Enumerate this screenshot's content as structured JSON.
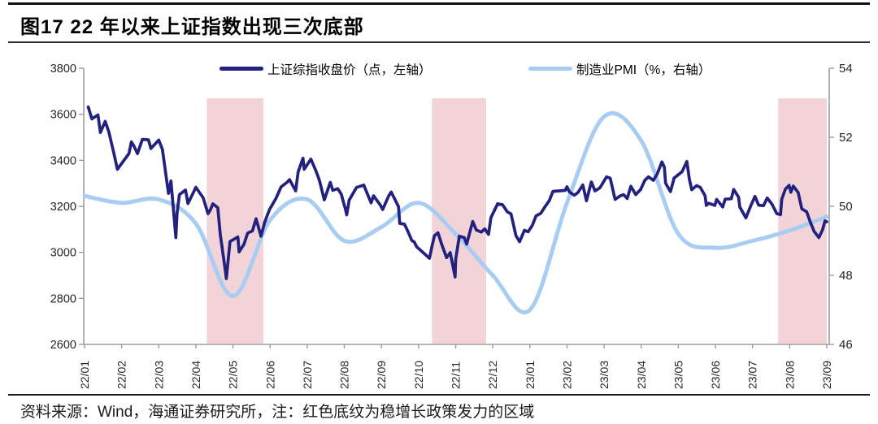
{
  "figure": {
    "title": "图17 22 年以来上证指数出现三次底部",
    "source_note": "资料来源：Wind，海通证券研究所，注：红色底纹为稳增长政策发力的区域"
  },
  "chart_data": {
    "type": "line",
    "title": "图17 22 年以来上证指数出现三次底部",
    "legend": [
      {
        "label": "上证综指收盘价（点，左轴）",
        "color": "#22217F"
      },
      {
        "label": "制造业PMI（%，右轴）",
        "color": "#A8CDF2"
      }
    ],
    "x_axis": {
      "tick_labels": [
        "22/01",
        "22/02",
        "22/03",
        "22/04",
        "22/05",
        "22/06",
        "22/07",
        "22/08",
        "22/09",
        "22/10",
        "22/11",
        "22/12",
        "23/01",
        "23/02",
        "23/03",
        "23/04",
        "23/05",
        "23/06",
        "23/07",
        "23/08",
        "23/09"
      ]
    },
    "left_y_axis": {
      "name": "上证综指收盘价（点）",
      "range": [
        2600,
        3800
      ],
      "ticks": [
        3800,
        3600,
        3400,
        3200,
        3000,
        2800,
        2600
      ]
    },
    "right_y_axis": {
      "name": "制造业PMI（%）",
      "range": [
        46,
        54
      ],
      "ticks": [
        54,
        52,
        50,
        48,
        46
      ]
    },
    "highlight_bands": {
      "meaning": "红色底纹为稳增长政策发力的区域",
      "color": "#F2D4D8",
      "ranges": [
        {
          "from": "2022-04-10",
          "to": "2022-05-26"
        },
        {
          "from": "2022-10-12",
          "to": "2022-11-26"
        },
        {
          "from": "2023-07-22",
          "to": "2023-09-01"
        }
      ]
    },
    "series": [
      {
        "name": "上证综指收盘价",
        "axis": "left",
        "unit": "点",
        "color": "#22217F",
        "points": [
          [
            "2022-01-04",
            3632
          ],
          [
            "2022-01-07",
            3580
          ],
          [
            "2022-01-12",
            3597
          ],
          [
            "2022-01-14",
            3521
          ],
          [
            "2022-01-18",
            3569
          ],
          [
            "2022-01-21",
            3523
          ],
          [
            "2022-01-25",
            3433
          ],
          [
            "2022-01-28",
            3361
          ],
          [
            "2022-02-07",
            3429
          ],
          [
            "2022-02-09",
            3480
          ],
          [
            "2022-02-11",
            3463
          ],
          [
            "2022-02-14",
            3429
          ],
          [
            "2022-02-18",
            3491
          ],
          [
            "2022-02-23",
            3489
          ],
          [
            "2022-02-25",
            3451
          ],
          [
            "2022-03-01",
            3488
          ],
          [
            "2022-03-04",
            3447
          ],
          [
            "2022-03-08",
            3293
          ],
          [
            "2022-03-09",
            3256
          ],
          [
            "2022-03-11",
            3310
          ],
          [
            "2022-03-15",
            3064
          ],
          [
            "2022-03-16",
            3171
          ],
          [
            "2022-03-18",
            3251
          ],
          [
            "2022-03-23",
            3271
          ],
          [
            "2022-03-25",
            3212
          ],
          [
            "2022-03-30",
            3266
          ],
          [
            "2022-04-01",
            3283
          ],
          [
            "2022-04-07",
            3237
          ],
          [
            "2022-04-11",
            3168
          ],
          [
            "2022-04-13",
            3186
          ],
          [
            "2022-04-15",
            3211
          ],
          [
            "2022-04-19",
            3194
          ],
          [
            "2022-04-21",
            3079
          ],
          [
            "2022-04-25",
            2928
          ],
          [
            "2022-04-26",
            2886
          ],
          [
            "2022-04-29",
            3047
          ],
          [
            "2022-05-05",
            3067
          ],
          [
            "2022-05-06",
            3002
          ],
          [
            "2022-05-10",
            3035
          ],
          [
            "2022-05-13",
            3084
          ],
          [
            "2022-05-17",
            3093
          ],
          [
            "2022-05-20",
            3146
          ],
          [
            "2022-05-24",
            3070
          ],
          [
            "2022-05-27",
            3130
          ],
          [
            "2022-05-31",
            3186
          ],
          [
            "2022-06-06",
            3236
          ],
          [
            "2022-06-10",
            3284
          ],
          [
            "2022-06-15",
            3305
          ],
          [
            "2022-06-17",
            3316
          ],
          [
            "2022-06-22",
            3267
          ],
          [
            "2022-06-24",
            3349
          ],
          [
            "2022-06-28",
            3409
          ],
          [
            "2022-06-29",
            3361
          ],
          [
            "2022-07-04",
            3405
          ],
          [
            "2022-07-08",
            3356
          ],
          [
            "2022-07-11",
            3313
          ],
          [
            "2022-07-15",
            3228
          ],
          [
            "2022-07-20",
            3304
          ],
          [
            "2022-07-22",
            3269
          ],
          [
            "2022-07-26",
            3277
          ],
          [
            "2022-07-29",
            3253
          ],
          [
            "2022-08-02",
            3186
          ],
          [
            "2022-08-03",
            3163
          ],
          [
            "2022-08-05",
            3227
          ],
          [
            "2022-08-11",
            3282
          ],
          [
            "2022-08-17",
            3292
          ],
          [
            "2022-08-23",
            3215
          ],
          [
            "2022-08-25",
            3246
          ],
          [
            "2022-08-31",
            3202
          ],
          [
            "2022-09-02",
            3186
          ],
          [
            "2022-09-07",
            3246
          ],
          [
            "2022-09-09",
            3262
          ],
          [
            "2022-09-15",
            3199
          ],
          [
            "2022-09-16",
            3126
          ],
          [
            "2022-09-20",
            3122
          ],
          [
            "2022-09-23",
            3088
          ],
          [
            "2022-09-26",
            3051
          ],
          [
            "2022-09-28",
            3045
          ],
          [
            "2022-09-30",
            3024
          ],
          [
            "2022-10-10",
            2974
          ],
          [
            "2022-10-12",
            3025
          ],
          [
            "2022-10-14",
            3072
          ],
          [
            "2022-10-17",
            3085
          ],
          [
            "2022-10-20",
            3035
          ],
          [
            "2022-10-24",
            2977
          ],
          [
            "2022-10-27",
            2999
          ],
          [
            "2022-10-31",
            2893
          ],
          [
            "2022-11-01",
            2969
          ],
          [
            "2022-11-04",
            3070
          ],
          [
            "2022-11-08",
            3064
          ],
          [
            "2022-11-10",
            3036
          ],
          [
            "2022-11-15",
            3134
          ],
          [
            "2022-11-18",
            3097
          ],
          [
            "2022-11-22",
            3088
          ],
          [
            "2022-11-25",
            3102
          ],
          [
            "2022-11-28",
            3078
          ],
          [
            "2022-11-30",
            3151
          ],
          [
            "2022-12-05",
            3211
          ],
          [
            "2022-12-09",
            3207
          ],
          [
            "2022-12-13",
            3176
          ],
          [
            "2022-12-16",
            3167
          ],
          [
            "2022-12-20",
            3073
          ],
          [
            "2022-12-23",
            3046
          ],
          [
            "2022-12-27",
            3096
          ],
          [
            "2022-12-30",
            3089
          ],
          [
            "2023-01-03",
            3117
          ],
          [
            "2023-01-06",
            3158
          ],
          [
            "2023-01-10",
            3170
          ],
          [
            "2023-01-13",
            3195
          ],
          [
            "2023-01-17",
            3225
          ],
          [
            "2023-01-20",
            3265
          ],
          [
            "2023-01-30",
            3269
          ],
          [
            "2023-02-01",
            3285
          ],
          [
            "2023-02-03",
            3263
          ],
          [
            "2023-02-07",
            3248
          ],
          [
            "2023-02-10",
            3260
          ],
          [
            "2023-02-14",
            3293
          ],
          [
            "2023-02-17",
            3224
          ],
          [
            "2023-02-21",
            3306
          ],
          [
            "2023-02-24",
            3267
          ],
          [
            "2023-02-28",
            3280
          ],
          [
            "2023-03-03",
            3328
          ],
          [
            "2023-03-06",
            3322
          ],
          [
            "2023-03-10",
            3230
          ],
          [
            "2023-03-14",
            3245
          ],
          [
            "2023-03-17",
            3251
          ],
          [
            "2023-03-20",
            3234
          ],
          [
            "2023-03-23",
            3287
          ],
          [
            "2023-03-27",
            3251
          ],
          [
            "2023-03-31",
            3273
          ],
          [
            "2023-04-04",
            3313
          ],
          [
            "2023-04-07",
            3328
          ],
          [
            "2023-04-11",
            3313
          ],
          [
            "2023-04-14",
            3339
          ],
          [
            "2023-04-18",
            3393
          ],
          [
            "2023-04-20",
            3370
          ],
          [
            "2023-04-21",
            3301
          ],
          [
            "2023-04-25",
            3264
          ],
          [
            "2023-04-28",
            3323
          ],
          [
            "2023-05-04",
            3350
          ],
          [
            "2023-05-08",
            3395
          ],
          [
            "2023-05-10",
            3319
          ],
          [
            "2023-05-12",
            3272
          ],
          [
            "2023-05-16",
            3290
          ],
          [
            "2023-05-19",
            3283
          ],
          [
            "2023-05-23",
            3246
          ],
          [
            "2023-05-24",
            3204
          ],
          [
            "2023-05-26",
            3213
          ],
          [
            "2023-05-31",
            3204
          ],
          [
            "2023-06-02",
            3230
          ],
          [
            "2023-06-07",
            3197
          ],
          [
            "2023-06-09",
            3231
          ],
          [
            "2023-06-14",
            3233
          ],
          [
            "2023-06-16",
            3273
          ],
          [
            "2023-06-20",
            3240
          ],
          [
            "2023-06-21",
            3197
          ],
          [
            "2023-06-26",
            3150
          ],
          [
            "2023-06-30",
            3202
          ],
          [
            "2023-07-03",
            3243
          ],
          [
            "2023-07-06",
            3205
          ],
          [
            "2023-07-10",
            3203
          ],
          [
            "2023-07-13",
            3236
          ],
          [
            "2023-07-17",
            3209
          ],
          [
            "2023-07-21",
            3168
          ],
          [
            "2023-07-24",
            3164
          ],
          [
            "2023-07-25",
            3231
          ],
          [
            "2023-07-28",
            3275
          ],
          [
            "2023-07-31",
            3291
          ],
          [
            "2023-08-02",
            3261
          ],
          [
            "2023-08-04",
            3288
          ],
          [
            "2023-08-08",
            3260
          ],
          [
            "2023-08-11",
            3189
          ],
          [
            "2023-08-15",
            3176
          ],
          [
            "2023-08-18",
            3131
          ],
          [
            "2023-08-21",
            3092
          ],
          [
            "2023-08-23",
            3078
          ],
          [
            "2023-08-25",
            3064
          ],
          [
            "2023-08-28",
            3098
          ],
          [
            "2023-08-30",
            3137
          ],
          [
            "2023-09-01",
            3133
          ]
        ]
      },
      {
        "name": "制造业PMI",
        "axis": "right",
        "unit": "%",
        "color": "#A8CDF2",
        "plotted_at": "month_end",
        "points": [
          [
            "2021-12",
            50.3
          ],
          [
            "2022-01",
            50.1
          ],
          [
            "2022-02",
            50.2
          ],
          [
            "2022-03",
            49.5
          ],
          [
            "2022-04",
            47.4
          ],
          [
            "2022-05",
            49.6
          ],
          [
            "2022-06",
            50.2
          ],
          [
            "2022-07",
            49.0
          ],
          [
            "2022-08",
            49.4
          ],
          [
            "2022-09",
            50.1
          ],
          [
            "2022-10",
            49.2
          ],
          [
            "2022-11",
            48.0
          ],
          [
            "2022-12",
            47.0
          ],
          [
            "2023-01",
            50.1
          ],
          [
            "2023-02",
            52.6
          ],
          [
            "2023-03",
            51.9
          ],
          [
            "2023-04",
            49.2
          ],
          [
            "2023-05",
            48.8
          ],
          [
            "2023-06",
            49.0
          ],
          [
            "2023-07",
            49.3
          ],
          [
            "2023-08",
            49.7
          ]
        ]
      }
    ]
  }
}
